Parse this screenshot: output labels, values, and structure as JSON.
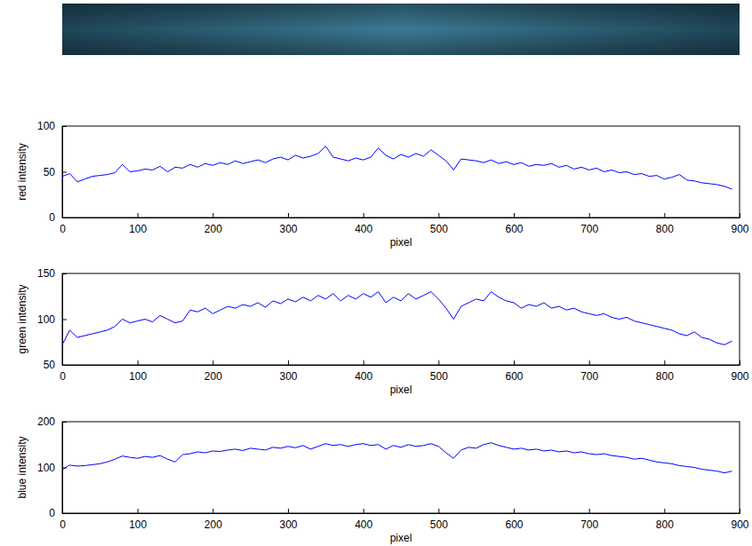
{
  "chart_data": [
    {
      "type": "line",
      "xlabel": "pixel",
      "ylabel": "red intensity",
      "color": "#0000ff",
      "xlim": [
        0,
        900
      ],
      "xticks": [
        0,
        100,
        200,
        300,
        400,
        500,
        600,
        700,
        800,
        900
      ],
      "ylim": [
        0,
        100
      ],
      "yticks": [
        0,
        50,
        100
      ],
      "x": [
        0,
        10,
        20,
        30,
        40,
        50,
        60,
        70,
        80,
        90,
        100,
        110,
        120,
        130,
        140,
        150,
        160,
        170,
        180,
        190,
        200,
        210,
        220,
        230,
        240,
        250,
        260,
        270,
        280,
        290,
        300,
        310,
        320,
        330,
        340,
        350,
        360,
        370,
        380,
        390,
        400,
        410,
        420,
        430,
        440,
        450,
        460,
        470,
        480,
        490,
        500,
        510,
        520,
        530,
        540,
        550,
        560,
        570,
        580,
        590,
        600,
        610,
        620,
        630,
        640,
        650,
        660,
        670,
        680,
        690,
        700,
        710,
        720,
        730,
        740,
        750,
        760,
        770,
        780,
        790,
        800,
        810,
        820,
        830,
        840,
        850,
        860,
        870,
        880,
        890
      ],
      "values": [
        45,
        48,
        39,
        42,
        45,
        46,
        47,
        49,
        58,
        50,
        51,
        53,
        52,
        56,
        50,
        55,
        54,
        58,
        55,
        59,
        57,
        60,
        58,
        62,
        59,
        61,
        63,
        60,
        64,
        66,
        63,
        68,
        65,
        67,
        70,
        78,
        66,
        64,
        62,
        65,
        63,
        66,
        76,
        68,
        64,
        69,
        66,
        70,
        67,
        74,
        68,
        62,
        52,
        64,
        63,
        62,
        60,
        63,
        59,
        61,
        58,
        60,
        56,
        58,
        57,
        59,
        55,
        57,
        53,
        55,
        52,
        54,
        50,
        52,
        49,
        50,
        47,
        48,
        45,
        46,
        42,
        44,
        47,
        41,
        40,
        38,
        37,
        36,
        34,
        31
      ]
    },
    {
      "type": "line",
      "xlabel": "pixel",
      "ylabel": "green intensity",
      "color": "#0000ff",
      "xlim": [
        0,
        900
      ],
      "xticks": [
        0,
        100,
        200,
        300,
        400,
        500,
        600,
        700,
        800,
        900
      ],
      "ylim": [
        50,
        150
      ],
      "yticks": [
        50,
        100,
        150
      ],
      "x": [
        0,
        10,
        20,
        30,
        40,
        50,
        60,
        70,
        80,
        90,
        100,
        110,
        120,
        130,
        140,
        150,
        160,
        170,
        180,
        190,
        200,
        210,
        220,
        230,
        240,
        250,
        260,
        270,
        280,
        290,
        300,
        310,
        320,
        330,
        340,
        350,
        360,
        370,
        380,
        390,
        400,
        410,
        420,
        430,
        440,
        450,
        460,
        470,
        480,
        490,
        500,
        510,
        520,
        530,
        540,
        550,
        560,
        570,
        580,
        590,
        600,
        610,
        620,
        630,
        640,
        650,
        660,
        670,
        680,
        690,
        700,
        710,
        720,
        730,
        740,
        750,
        760,
        770,
        780,
        790,
        800,
        810,
        820,
        830,
        840,
        850,
        860,
        870,
        880,
        890
      ],
      "values": [
        72,
        88,
        80,
        82,
        84,
        86,
        88,
        92,
        100,
        96,
        98,
        100,
        97,
        104,
        100,
        96,
        98,
        110,
        108,
        112,
        106,
        110,
        114,
        112,
        116,
        114,
        118,
        113,
        120,
        117,
        122,
        119,
        124,
        120,
        126,
        122,
        128,
        120,
        126,
        122,
        128,
        124,
        130,
        118,
        124,
        120,
        128,
        122,
        126,
        130,
        122,
        112,
        100,
        114,
        118,
        122,
        120,
        130,
        124,
        120,
        118,
        112,
        116,
        114,
        118,
        112,
        114,
        110,
        112,
        108,
        106,
        104,
        106,
        102,
        100,
        102,
        98,
        96,
        94,
        92,
        90,
        88,
        84,
        82,
        86,
        80,
        78,
        74,
        72,
        76
      ]
    },
    {
      "type": "line",
      "xlabel": "pixel",
      "ylabel": "blue intensity",
      "color": "#0000ff",
      "xlim": [
        0,
        900
      ],
      "xticks": [
        0,
        100,
        200,
        300,
        400,
        500,
        600,
        700,
        800,
        900
      ],
      "ylim": [
        0,
        200
      ],
      "yticks": [
        0,
        100,
        200
      ],
      "x": [
        0,
        10,
        20,
        30,
        40,
        50,
        60,
        70,
        80,
        90,
        100,
        110,
        120,
        130,
        140,
        150,
        160,
        170,
        180,
        190,
        200,
        210,
        220,
        230,
        240,
        250,
        260,
        270,
        280,
        290,
        300,
        310,
        320,
        330,
        340,
        350,
        360,
        370,
        380,
        390,
        400,
        410,
        420,
        430,
        440,
        450,
        460,
        470,
        480,
        490,
        500,
        510,
        520,
        530,
        540,
        550,
        560,
        570,
        580,
        590,
        600,
        610,
        620,
        630,
        640,
        650,
        660,
        670,
        680,
        690,
        700,
        710,
        720,
        730,
        740,
        750,
        760,
        770,
        780,
        790,
        800,
        810,
        820,
        830,
        840,
        850,
        860,
        870,
        880,
        890
      ],
      "values": [
        95,
        105,
        103,
        104,
        106,
        108,
        112,
        118,
        125,
        122,
        120,
        124,
        122,
        126,
        118,
        112,
        128,
        130,
        134,
        132,
        136,
        135,
        138,
        140,
        137,
        142,
        140,
        138,
        144,
        142,
        146,
        143,
        148,
        140,
        146,
        152,
        148,
        150,
        146,
        150,
        152,
        148,
        150,
        140,
        148,
        144,
        150,
        146,
        148,
        152,
        146,
        132,
        120,
        138,
        144,
        142,
        150,
        154,
        148,
        144,
        140,
        142,
        138,
        140,
        136,
        138,
        134,
        136,
        132,
        134,
        130,
        128,
        130,
        126,
        124,
        122,
        118,
        120,
        116,
        112,
        110,
        108,
        104,
        102,
        100,
        96,
        94,
        92,
        88,
        92
      ]
    }
  ]
}
